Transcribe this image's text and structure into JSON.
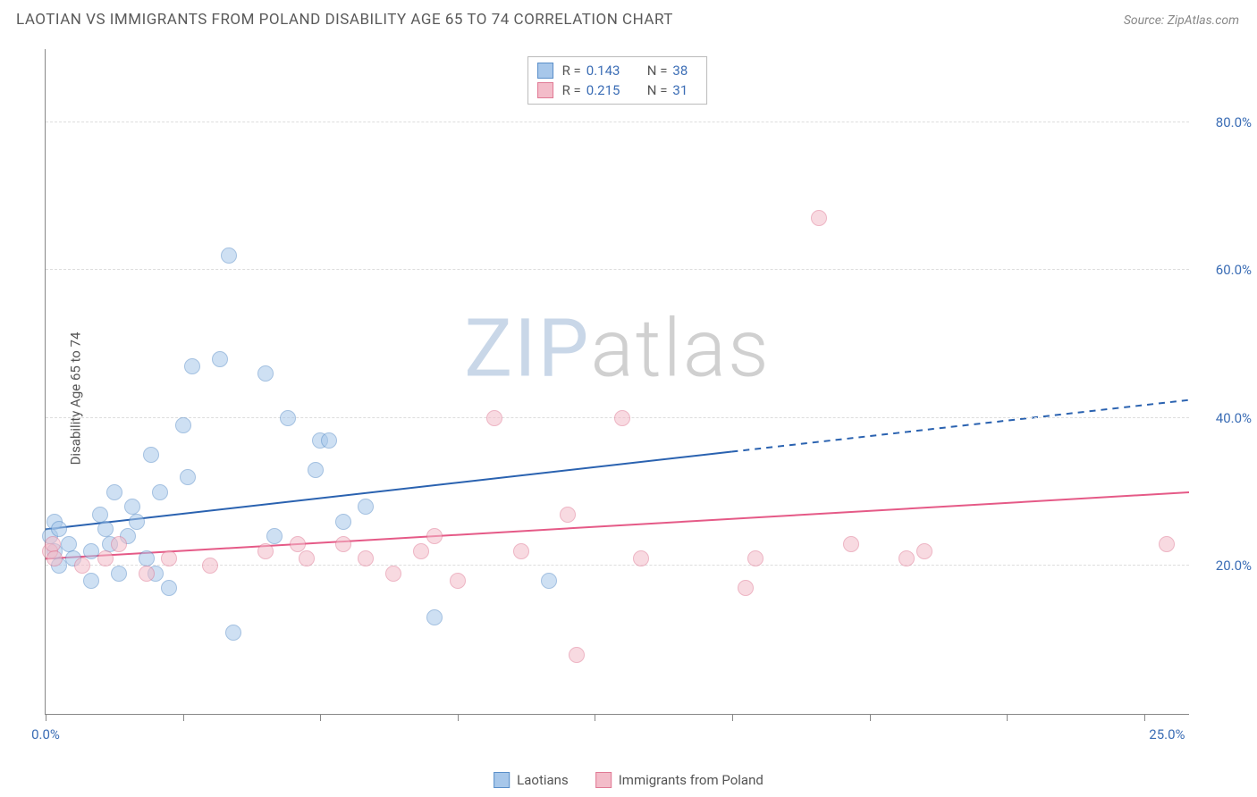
{
  "title": "LAOTIAN VS IMMIGRANTS FROM POLAND DISABILITY AGE 65 TO 74 CORRELATION CHART",
  "source_label": "Source: ZipAtlas.com",
  "y_axis_label": "Disability Age 65 to 74",
  "watermark": {
    "a": "ZIP",
    "b": "atlas"
  },
  "chart": {
    "type": "scatter",
    "background_color": "#ffffff",
    "grid_color": "#dddddd",
    "axis_color": "#888888",
    "xlim": [
      0,
      25
    ],
    "ylim": [
      0,
      90
    ],
    "x_tick_positions": [
      0,
      3,
      6,
      9,
      12,
      15,
      18,
      21,
      24
    ],
    "x_tick_labels": {
      "0": "0.0%",
      "24.5": "25.0%"
    },
    "y_grid": [
      20,
      40,
      60,
      80
    ],
    "y_tick_labels": {
      "20": "20.0%",
      "40": "40.0%",
      "60": "60.0%",
      "80": "80.0%"
    },
    "marker_radius": 9,
    "marker_opacity": 0.55,
    "label_fontsize": 15,
    "label_color": "#3b6db5"
  },
  "series": [
    {
      "key": "laotians",
      "label": "Laotians",
      "fill": "#a7c7ea",
      "stroke": "#5a8fc9",
      "R": "0.143",
      "N": "38",
      "trend": {
        "y_at_x0": 25,
        "y_at_x25": 42.5,
        "solid_until_x": 15,
        "color": "#2a62b0",
        "width": 2
      },
      "points": [
        [
          0.1,
          24
        ],
        [
          0.2,
          22
        ],
        [
          0.2,
          26
        ],
        [
          0.3,
          20
        ],
        [
          0.3,
          25
        ],
        [
          0.5,
          23
        ],
        [
          0.6,
          21
        ],
        [
          1.0,
          22
        ],
        [
          1.0,
          18
        ],
        [
          1.2,
          27
        ],
        [
          1.3,
          25
        ],
        [
          1.4,
          23
        ],
        [
          1.5,
          30
        ],
        [
          1.6,
          19
        ],
        [
          1.8,
          24
        ],
        [
          1.9,
          28
        ],
        [
          2.0,
          26
        ],
        [
          2.2,
          21
        ],
        [
          2.3,
          35
        ],
        [
          2.4,
          19
        ],
        [
          2.5,
          30
        ],
        [
          2.7,
          17
        ],
        [
          3.0,
          39
        ],
        [
          3.1,
          32
        ],
        [
          3.2,
          47
        ],
        [
          3.8,
          48
        ],
        [
          4.0,
          62
        ],
        [
          4.1,
          11
        ],
        [
          4.8,
          46
        ],
        [
          5.0,
          24
        ],
        [
          5.3,
          40
        ],
        [
          5.9,
          33
        ],
        [
          6.0,
          37
        ],
        [
          6.2,
          37
        ],
        [
          6.5,
          26
        ],
        [
          7.0,
          28
        ],
        [
          8.5,
          13
        ],
        [
          11.0,
          18
        ]
      ]
    },
    {
      "key": "poland",
      "label": "Immigrants from Poland",
      "fill": "#f3bcc9",
      "stroke": "#e07a95",
      "R": "0.215",
      "N": "31",
      "trend": {
        "y_at_x0": 21,
        "y_at_x25": 30,
        "solid_until_x": 25,
        "color": "#e55a87",
        "width": 2
      },
      "points": [
        [
          0.1,
          22
        ],
        [
          0.15,
          23
        ],
        [
          0.2,
          21
        ],
        [
          0.8,
          20
        ],
        [
          1.3,
          21
        ],
        [
          1.6,
          23
        ],
        [
          2.2,
          19
        ],
        [
          2.7,
          21
        ],
        [
          3.6,
          20
        ],
        [
          4.8,
          22
        ],
        [
          5.5,
          23
        ],
        [
          5.7,
          21
        ],
        [
          6.5,
          23
        ],
        [
          7.0,
          21
        ],
        [
          7.6,
          19
        ],
        [
          8.2,
          22
        ],
        [
          8.5,
          24
        ],
        [
          9.0,
          18
        ],
        [
          9.8,
          40
        ],
        [
          10.4,
          22
        ],
        [
          11.4,
          27
        ],
        [
          11.6,
          8
        ],
        [
          12.6,
          40
        ],
        [
          13.0,
          21
        ],
        [
          15.3,
          17
        ],
        [
          15.5,
          21
        ],
        [
          16.9,
          67
        ],
        [
          17.6,
          23
        ],
        [
          18.8,
          21
        ],
        [
          19.2,
          22
        ],
        [
          24.5,
          23
        ]
      ]
    }
  ]
}
